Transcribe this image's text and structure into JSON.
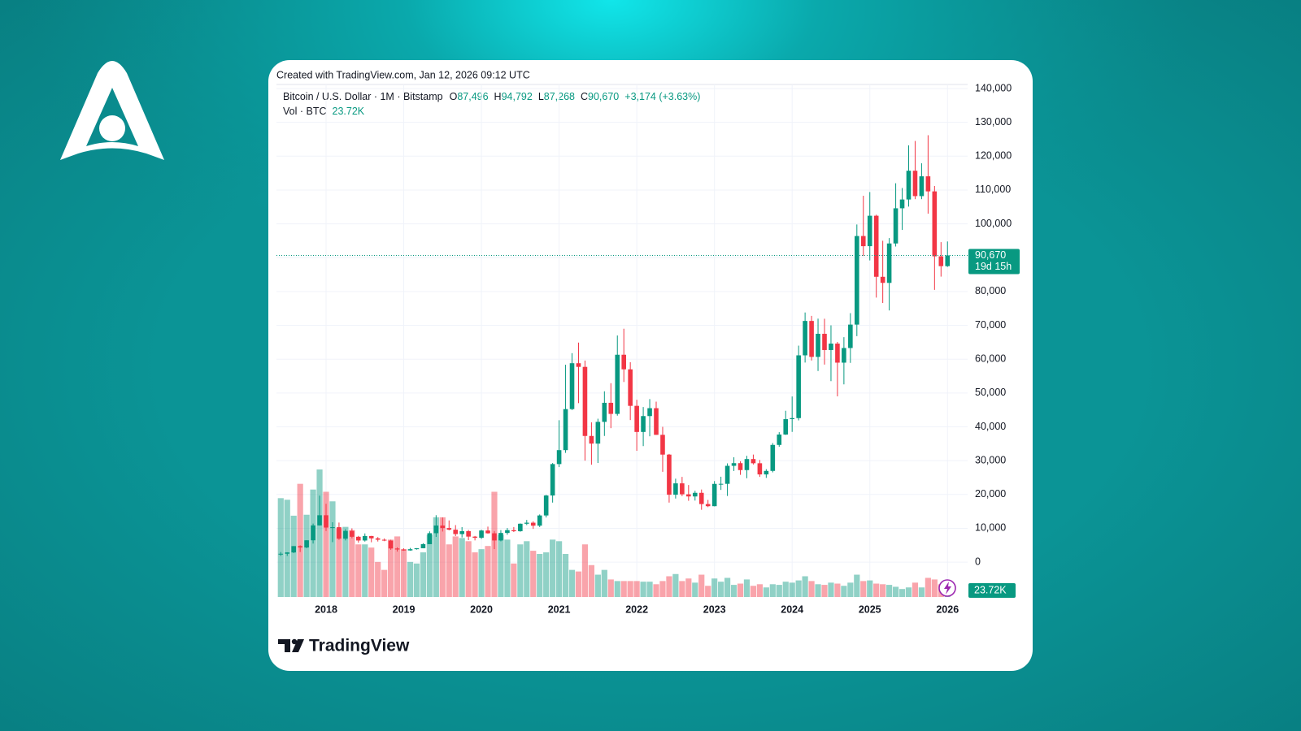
{
  "header": {
    "created": "Created with TradingView.com, Jan 12, 2026 09:12 UTC",
    "symbol": "Bitcoin / U.S. Dollar · 1M · Bitstamp",
    "ohlc": [
      {
        "key": "O",
        "value": "87,496"
      },
      {
        "key": "H",
        "value": "94,792"
      },
      {
        "key": "L",
        "value": "87,268"
      },
      {
        "key": "C",
        "value": "90,670"
      }
    ],
    "change": "+3,174 (+3.63%)",
    "volume_name": "Vol · BTC"
  },
  "branding": "TradingView",
  "chart_data": {
    "type": "candlestick",
    "categories": [
      null,
      null,
      null,
      null,
      null,
      null,
      null,
      "2018",
      null,
      null,
      null,
      null,
      null,
      null,
      null,
      null,
      null,
      null,
      null,
      "2019",
      null,
      null,
      null,
      null,
      null,
      null,
      null,
      null,
      null,
      null,
      null,
      "2020",
      null,
      null,
      null,
      null,
      null,
      null,
      null,
      null,
      null,
      null,
      null,
      "2021",
      null,
      null,
      null,
      null,
      null,
      null,
      null,
      null,
      null,
      null,
      null,
      "2022",
      null,
      null,
      null,
      null,
      null,
      null,
      null,
      null,
      null,
      null,
      null,
      "2023",
      null,
      null,
      null,
      null,
      null,
      null,
      null,
      null,
      null,
      null,
      null,
      "2024",
      null,
      null,
      null,
      null,
      null,
      null,
      null,
      null,
      null,
      null,
      null,
      "2025",
      null,
      null,
      null,
      null,
      null,
      null,
      null,
      null,
      null,
      null,
      null,
      "2026"
    ],
    "open": [
      2300,
      2480,
      2870,
      4740,
      4340,
      6460,
      10860,
      13860,
      10220,
      10330,
      6930,
      9240,
      7500,
      6400,
      7730,
      7030,
      6630,
      6370,
      4040,
      3740,
      3460,
      3830,
      4100,
      5320,
      8560,
      10820,
      10080,
      9590,
      8290,
      9150,
      7550,
      7190,
      9350,
      8530,
      6410,
      8630,
      9450,
      9140,
      11350,
      11660,
      10780,
      13800,
      19700,
      28990,
      33110,
      45240,
      58800,
      57720,
      37300,
      35040,
      41460,
      47100,
      43820,
      61310,
      57000,
      46200,
      38480,
      43180,
      45510,
      37630,
      31790,
      19940,
      23290,
      20050,
      19420,
      20490,
      17170,
      16540,
      23130,
      23150,
      28470,
      29260,
      27210,
      30470,
      29230,
      25930,
      26970,
      34650,
      37720,
      42270,
      42580,
      61130,
      71300,
      60670,
      67500,
      62700,
      64600,
      58970,
      63300,
      70220,
      96400,
      93400,
      102400,
      84350,
      82550,
      94200,
      104600,
      107200,
      115700,
      108200,
      114050,
      109600,
      90400,
      87496
    ],
    "high": [
      2990,
      2930,
      4750,
      4980,
      6470,
      11400,
      19666,
      17250,
      11790,
      11700,
      9760,
      9990,
      7760,
      8490,
      7760,
      7410,
      7000,
      6620,
      4380,
      4090,
      4200,
      4150,
      5600,
      9100,
      13880,
      13200,
      12330,
      10950,
      10370,
      9510,
      7750,
      9580,
      10500,
      9190,
      9470,
      10080,
      10380,
      11450,
      12470,
      12070,
      14100,
      19900,
      29300,
      41950,
      58350,
      61780,
      64900,
      59590,
      41330,
      42400,
      50500,
      52900,
      67000,
      69000,
      59100,
      47990,
      45850,
      48200,
      47440,
      40000,
      31990,
      24670,
      25200,
      22800,
      21090,
      21470,
      18390,
      23960,
      25250,
      29200,
      31000,
      29820,
      31430,
      31800,
      30200,
      27480,
      35200,
      38420,
      44750,
      48970,
      64000,
      73800,
      72800,
      71980,
      71950,
      70000,
      65100,
      66500,
      73600,
      99800,
      108300,
      109400,
      102700,
      95000,
      95800,
      112000,
      110600,
      123200,
      124500,
      117900,
      126200,
      111200,
      94600,
      94792
    ],
    "low": [
      1850,
      1830,
      2670,
      2980,
      4110,
      5500,
      10800,
      9200,
      5920,
      6600,
      6430,
      7040,
      5750,
      6070,
      5880,
      6100,
      6200,
      3650,
      3120,
      3350,
      3390,
      3700,
      4100,
      5320,
      7450,
      9050,
      9400,
      7710,
      7300,
      6520,
      6430,
      6870,
      8440,
      3850,
      6150,
      8100,
      8910,
      8990,
      10950,
      9830,
      10370,
      13200,
      17600,
      28100,
      32300,
      44960,
      47000,
      30000,
      28800,
      29300,
      37300,
      39600,
      43300,
      53250,
      42000,
      32900,
      34300,
      37200,
      37600,
      26700,
      17600,
      18800,
      19520,
      18130,
      18200,
      15480,
      16260,
      16500,
      21350,
      19560,
      26940,
      25810,
      24800,
      28860,
      25200,
      24900,
      26540,
      34100,
      37600,
      38500,
      41900,
      59000,
      59600,
      56500,
      58400,
      53500,
      49000,
      52550,
      58900,
      66800,
      90500,
      89200,
      78200,
      76600,
      74400,
      93300,
      98200,
      105100,
      107300,
      107300,
      103000,
      80500,
      84400,
      87268
    ],
    "close": [
      2480,
      2870,
      4740,
      4340,
      6460,
      10860,
      13860,
      10220,
      10330,
      6930,
      9240,
      7500,
      6400,
      7730,
      7030,
      6630,
      6370,
      4040,
      3740,
      3460,
      3830,
      4100,
      5320,
      8560,
      10820,
      10080,
      9590,
      8290,
      9150,
      7550,
      7190,
      9350,
      8530,
      6410,
      8630,
      9450,
      9140,
      11350,
      11660,
      10780,
      13800,
      19700,
      28990,
      33110,
      45240,
      58800,
      57720,
      37300,
      35040,
      41460,
      47100,
      43820,
      61310,
      57000,
      46200,
      38480,
      43180,
      45510,
      37630,
      31790,
      19940,
      23290,
      20050,
      19420,
      20490,
      17170,
      16540,
      23130,
      23150,
      28470,
      29260,
      27210,
      30470,
      29230,
      25930,
      26970,
      34650,
      37720,
      42270,
      42580,
      61130,
      71300,
      60670,
      67500,
      62700,
      64600,
      58970,
      63300,
      70220,
      96400,
      93400,
      102400,
      84350,
      82550,
      94200,
      104600,
      107200,
      115700,
      108200,
      114050,
      109600,
      90400,
      87496,
      90670
    ],
    "volume": [
      310000,
      305000,
      255000,
      355000,
      258000,
      337000,
      400000,
      330000,
      300000,
      215000,
      220000,
      210000,
      165000,
      165000,
      155000,
      110000,
      85000,
      180000,
      190000,
      150000,
      110000,
      105000,
      140000,
      195000,
      250000,
      250000,
      165000,
      190000,
      185000,
      175000,
      140000,
      150000,
      160000,
      330000,
      195000,
      180000,
      105000,
      165000,
      175000,
      145000,
      135000,
      140000,
      180000,
      175000,
      135000,
      85000,
      80000,
      165000,
      100000,
      70000,
      85000,
      55000,
      50000,
      50000,
      50000,
      50000,
      48000,
      48000,
      40000,
      50000,
      65000,
      72000,
      50000,
      58000,
      45000,
      70000,
      35000,
      58000,
      48000,
      60000,
      38000,
      42000,
      55000,
      35000,
      40000,
      30000,
      40000,
      38000,
      48000,
      45000,
      52000,
      65000,
      50000,
      40000,
      38000,
      45000,
      42000,
      35000,
      45000,
      70000,
      50000,
      52000,
      42000,
      40000,
      38000,
      32000,
      25000,
      30000,
      45000,
      30000,
      60000,
      55000,
      40000,
      23720
    ],
    "last_close_label": "90,670",
    "volume_label": "23.72K",
    "countdown": "19d 15h",
    "up_color": "#089981",
    "down_color": "#f23645",
    "ylim": [
      -10300,
      141200
    ],
    "yticks": [
      0,
      {
        "value": 10000,
        "label": "10,000"
      },
      {
        "value": 20000,
        "label": "20,000"
      },
      {
        "value": 30000,
        "label": "30,000"
      },
      {
        "value": 40000,
        "label": "40,000"
      },
      {
        "value": 50000,
        "label": "50,000"
      },
      {
        "value": 60000,
        "label": "60,000"
      },
      {
        "value": 70000,
        "label": "70,000"
      },
      {
        "value": 80000,
        "label": "80,000"
      },
      {
        "value": 90000,
        "label": "90,000"
      },
      {
        "value": 100000,
        "label": "100,000"
      },
      {
        "value": 110000,
        "label": "110,000"
      },
      {
        "value": 120000,
        "label": "120,000"
      },
      {
        "value": 130000,
        "label": "130,000"
      },
      {
        "value": 140000,
        "label": "140,000"
      }
    ],
    "grid": true
  }
}
